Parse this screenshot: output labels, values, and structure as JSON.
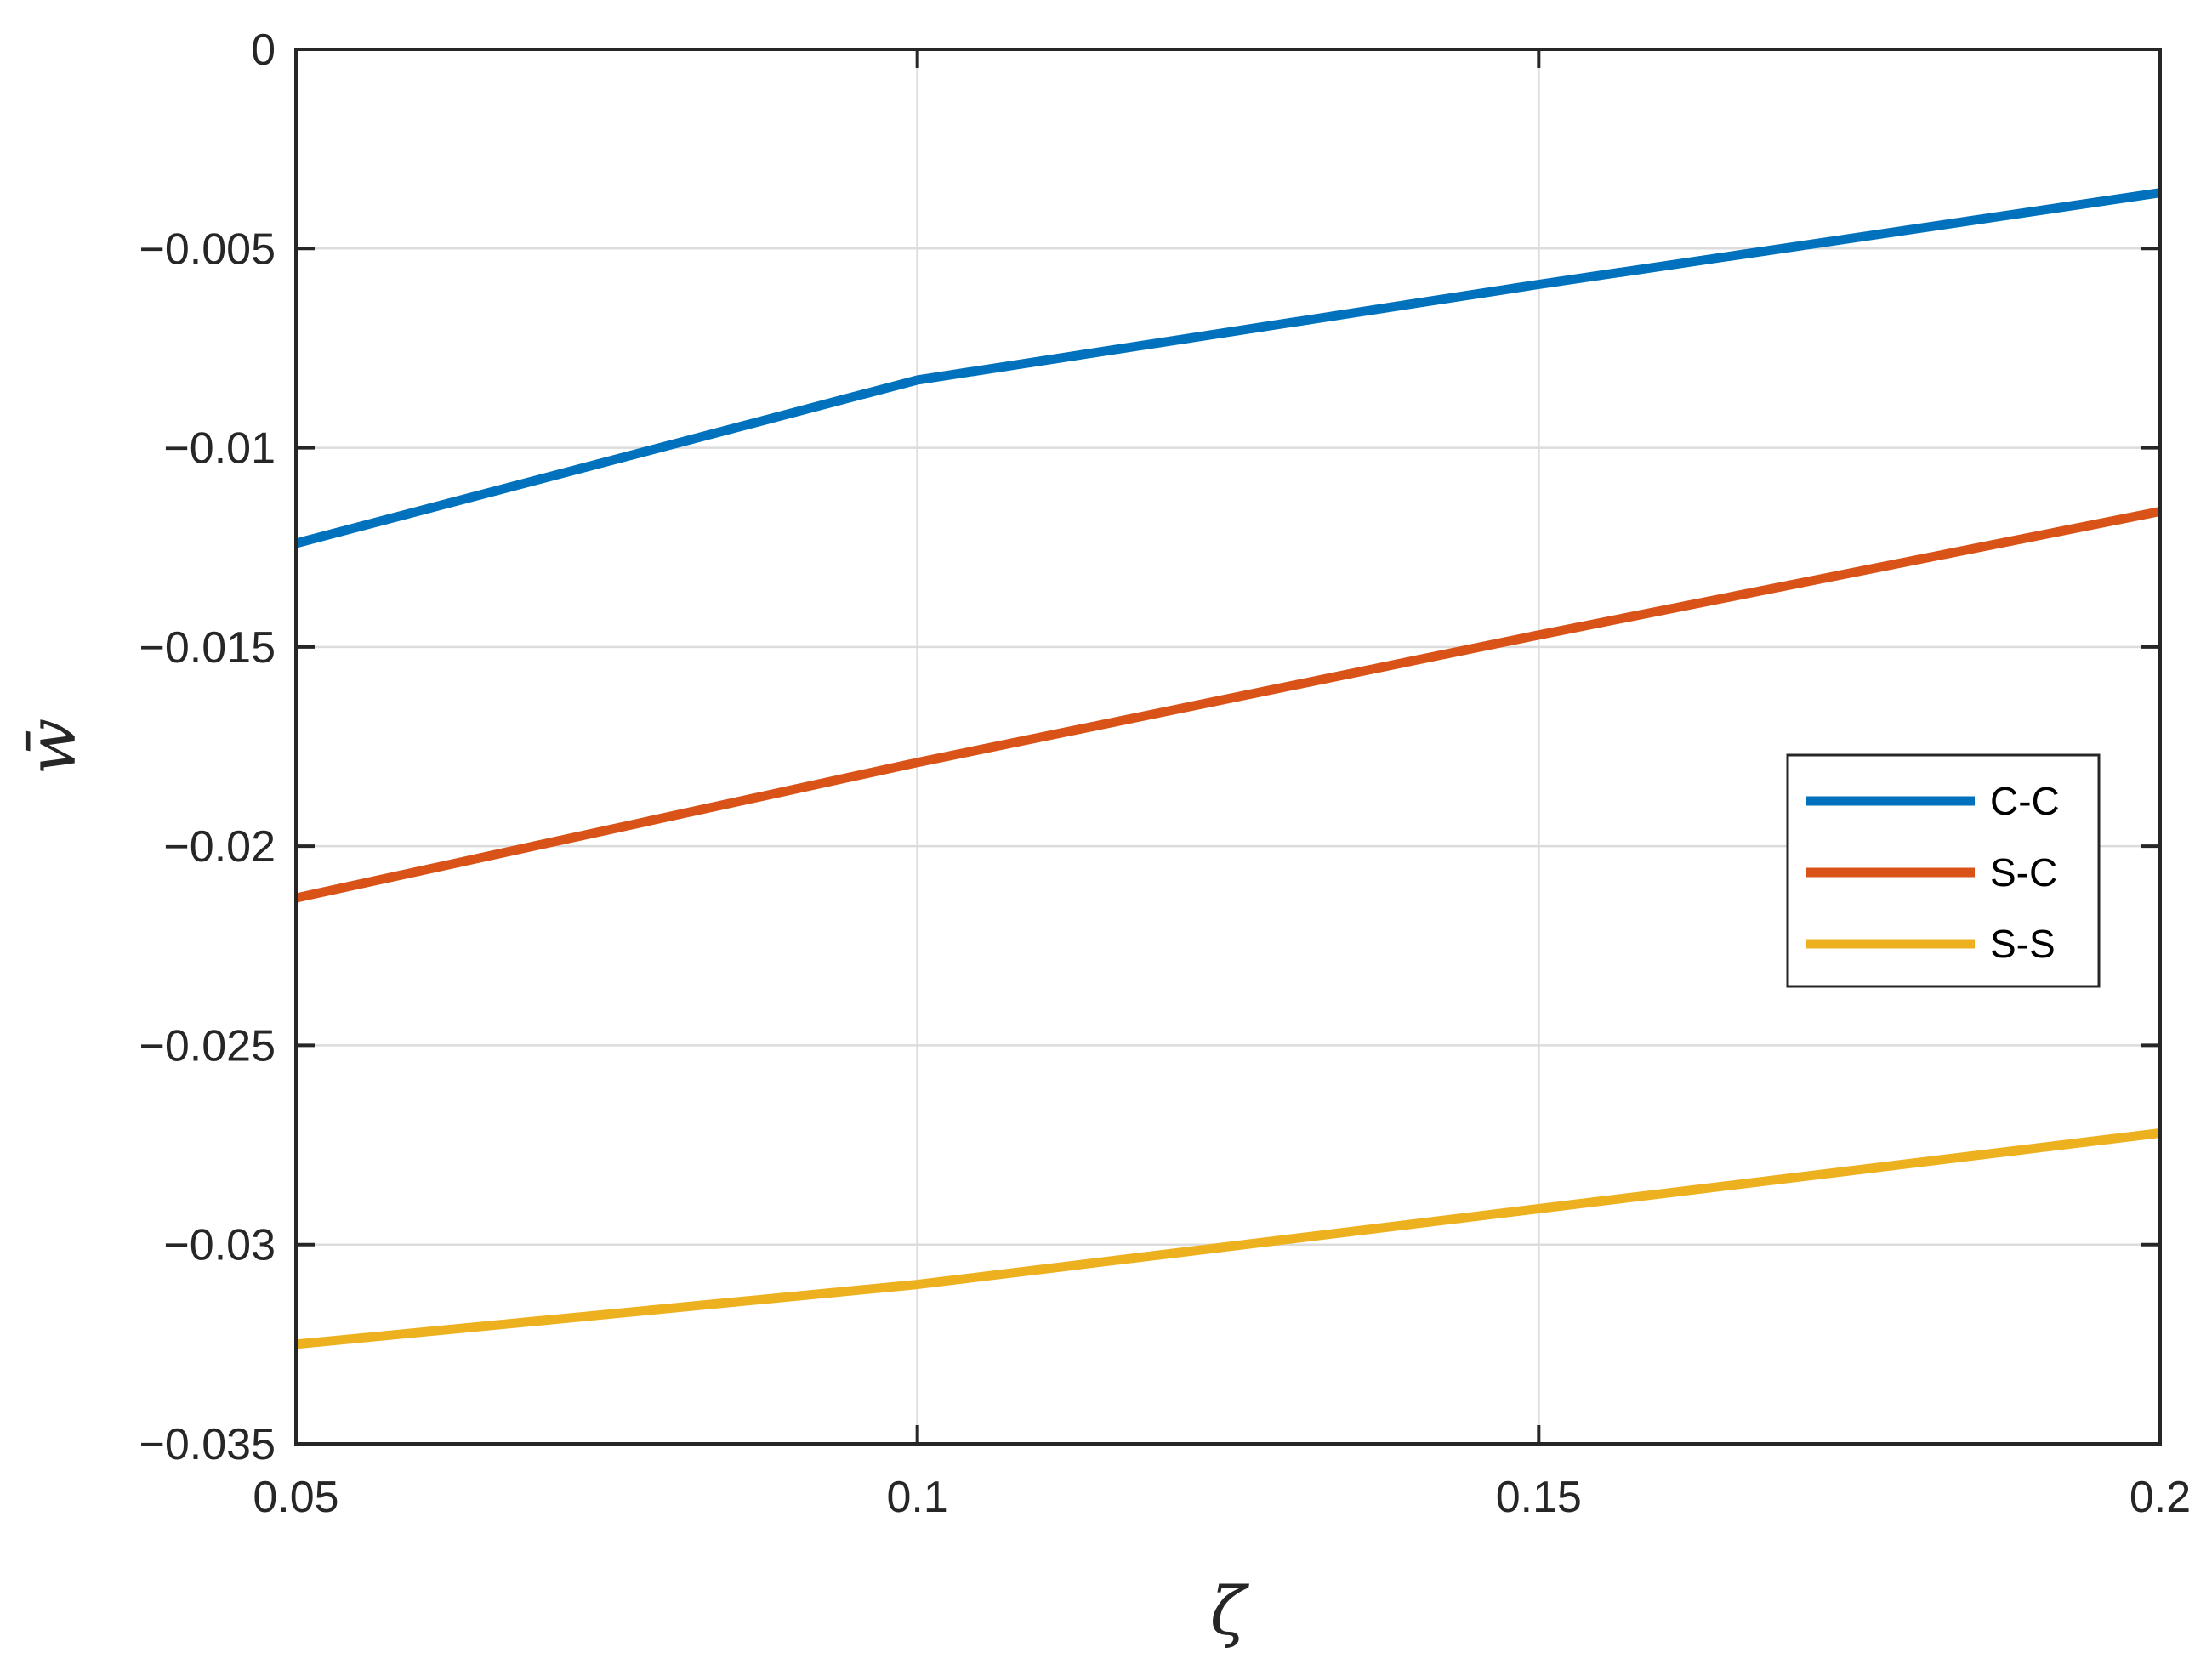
{
  "chart_data": {
    "type": "line",
    "title": "",
    "xlabel": "ζ",
    "ylabel": "w̄",
    "xlim": [
      0.05,
      0.2
    ],
    "ylim": [
      -0.035,
      0
    ],
    "xticks": [
      0.05,
      0.1,
      0.15,
      0.2
    ],
    "xtick_labels": [
      "0.05",
      "0.1",
      "0.15",
      "0.2"
    ],
    "yticks": [
      0,
      -0.005,
      -0.01,
      -0.015,
      -0.02,
      -0.025,
      -0.03,
      -0.035
    ],
    "ytick_labels": [
      "0",
      "−0.005",
      "−0.01",
      "−0.015",
      "−0.02",
      "−0.025",
      "−0.03",
      "−0.035"
    ],
    "grid": true,
    "legend_position": "right",
    "x": [
      0.05,
      0.1,
      0.15,
      0.2
    ],
    "series": [
      {
        "name": "C-C",
        "color": "#0072BD",
        "values": [
          -0.0124,
          -0.0083,
          -0.0059,
          -0.0036
        ]
      },
      {
        "name": "S-C",
        "color": "#D95319",
        "values": [
          -0.0213,
          -0.0179,
          -0.0147,
          -0.0116
        ]
      },
      {
        "name": "S-S",
        "color": "#EDB120",
        "values": [
          -0.0325,
          -0.031,
          -0.0291,
          -0.0272
        ]
      }
    ]
  }
}
